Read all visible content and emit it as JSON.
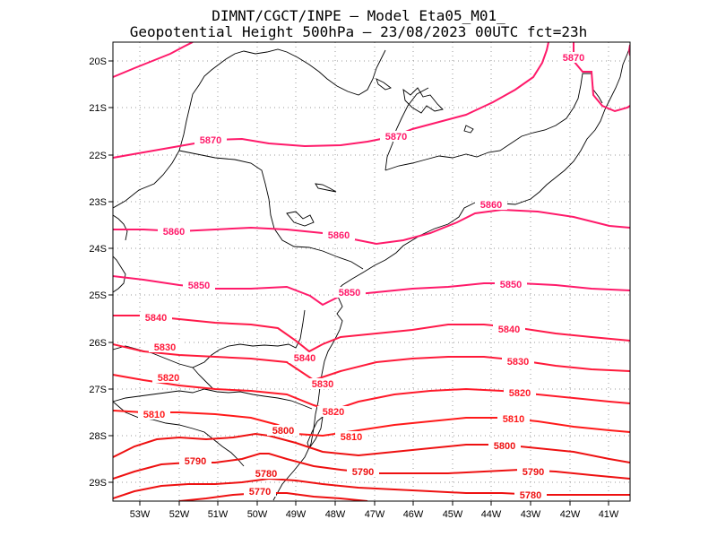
{
  "header": {
    "line1": "DIMNT/CGCT/INPE –  Model Eta05_M01_",
    "line2": "Geopotential Height 500hPa –  23/08/2023 00UTC fct=23h"
  },
  "axes": {
    "lon_labels": [
      "53W",
      "52W",
      "51W",
      "50W",
      "49W",
      "48W",
      "47W",
      "46W",
      "45W",
      "44W",
      "43W",
      "42W",
      "41W"
    ],
    "lat_labels": [
      "20S",
      "21S",
      "22S",
      "23S",
      "24S",
      "25S",
      "26S",
      "27S",
      "28S",
      "29S"
    ]
  },
  "contours": [
    {
      "value": "5870",
      "color": "#ff1a6a",
      "labels": [
        "5870",
        "5870",
        "5870"
      ]
    },
    {
      "value": "5860",
      "color": "#ff1a6a",
      "labels": [
        "5860",
        "5860",
        "5860"
      ]
    },
    {
      "value": "5850",
      "color": "#ff1a6a",
      "labels": [
        "5850",
        "5850",
        "5850"
      ]
    },
    {
      "value": "5840",
      "color": "#ff1a4a",
      "labels": [
        "5840",
        "5840",
        "5840"
      ]
    },
    {
      "value": "5830",
      "color": "#ff1a3a",
      "labels": [
        "5830",
        "5830",
        "5830"
      ]
    },
    {
      "value": "5820",
      "color": "#ff1a2a",
      "labels": [
        "5820",
        "5820",
        "5820"
      ]
    },
    {
      "value": "5810",
      "color": "#ff1a1a",
      "labels": [
        "5810",
        "5810",
        "5810"
      ]
    },
    {
      "value": "5800",
      "color": "#ee1111",
      "labels": [
        "5800",
        "5800"
      ]
    },
    {
      "value": "5790",
      "color": "#ee1111",
      "labels": [
        "5790",
        "5790",
        "5790"
      ]
    },
    {
      "value": "5780",
      "color": "#ee1111",
      "labels": [
        "5780",
        "5780"
      ]
    },
    {
      "value": "5770",
      "color": "#ee1111",
      "labels": [
        "5770"
      ]
    }
  ]
}
